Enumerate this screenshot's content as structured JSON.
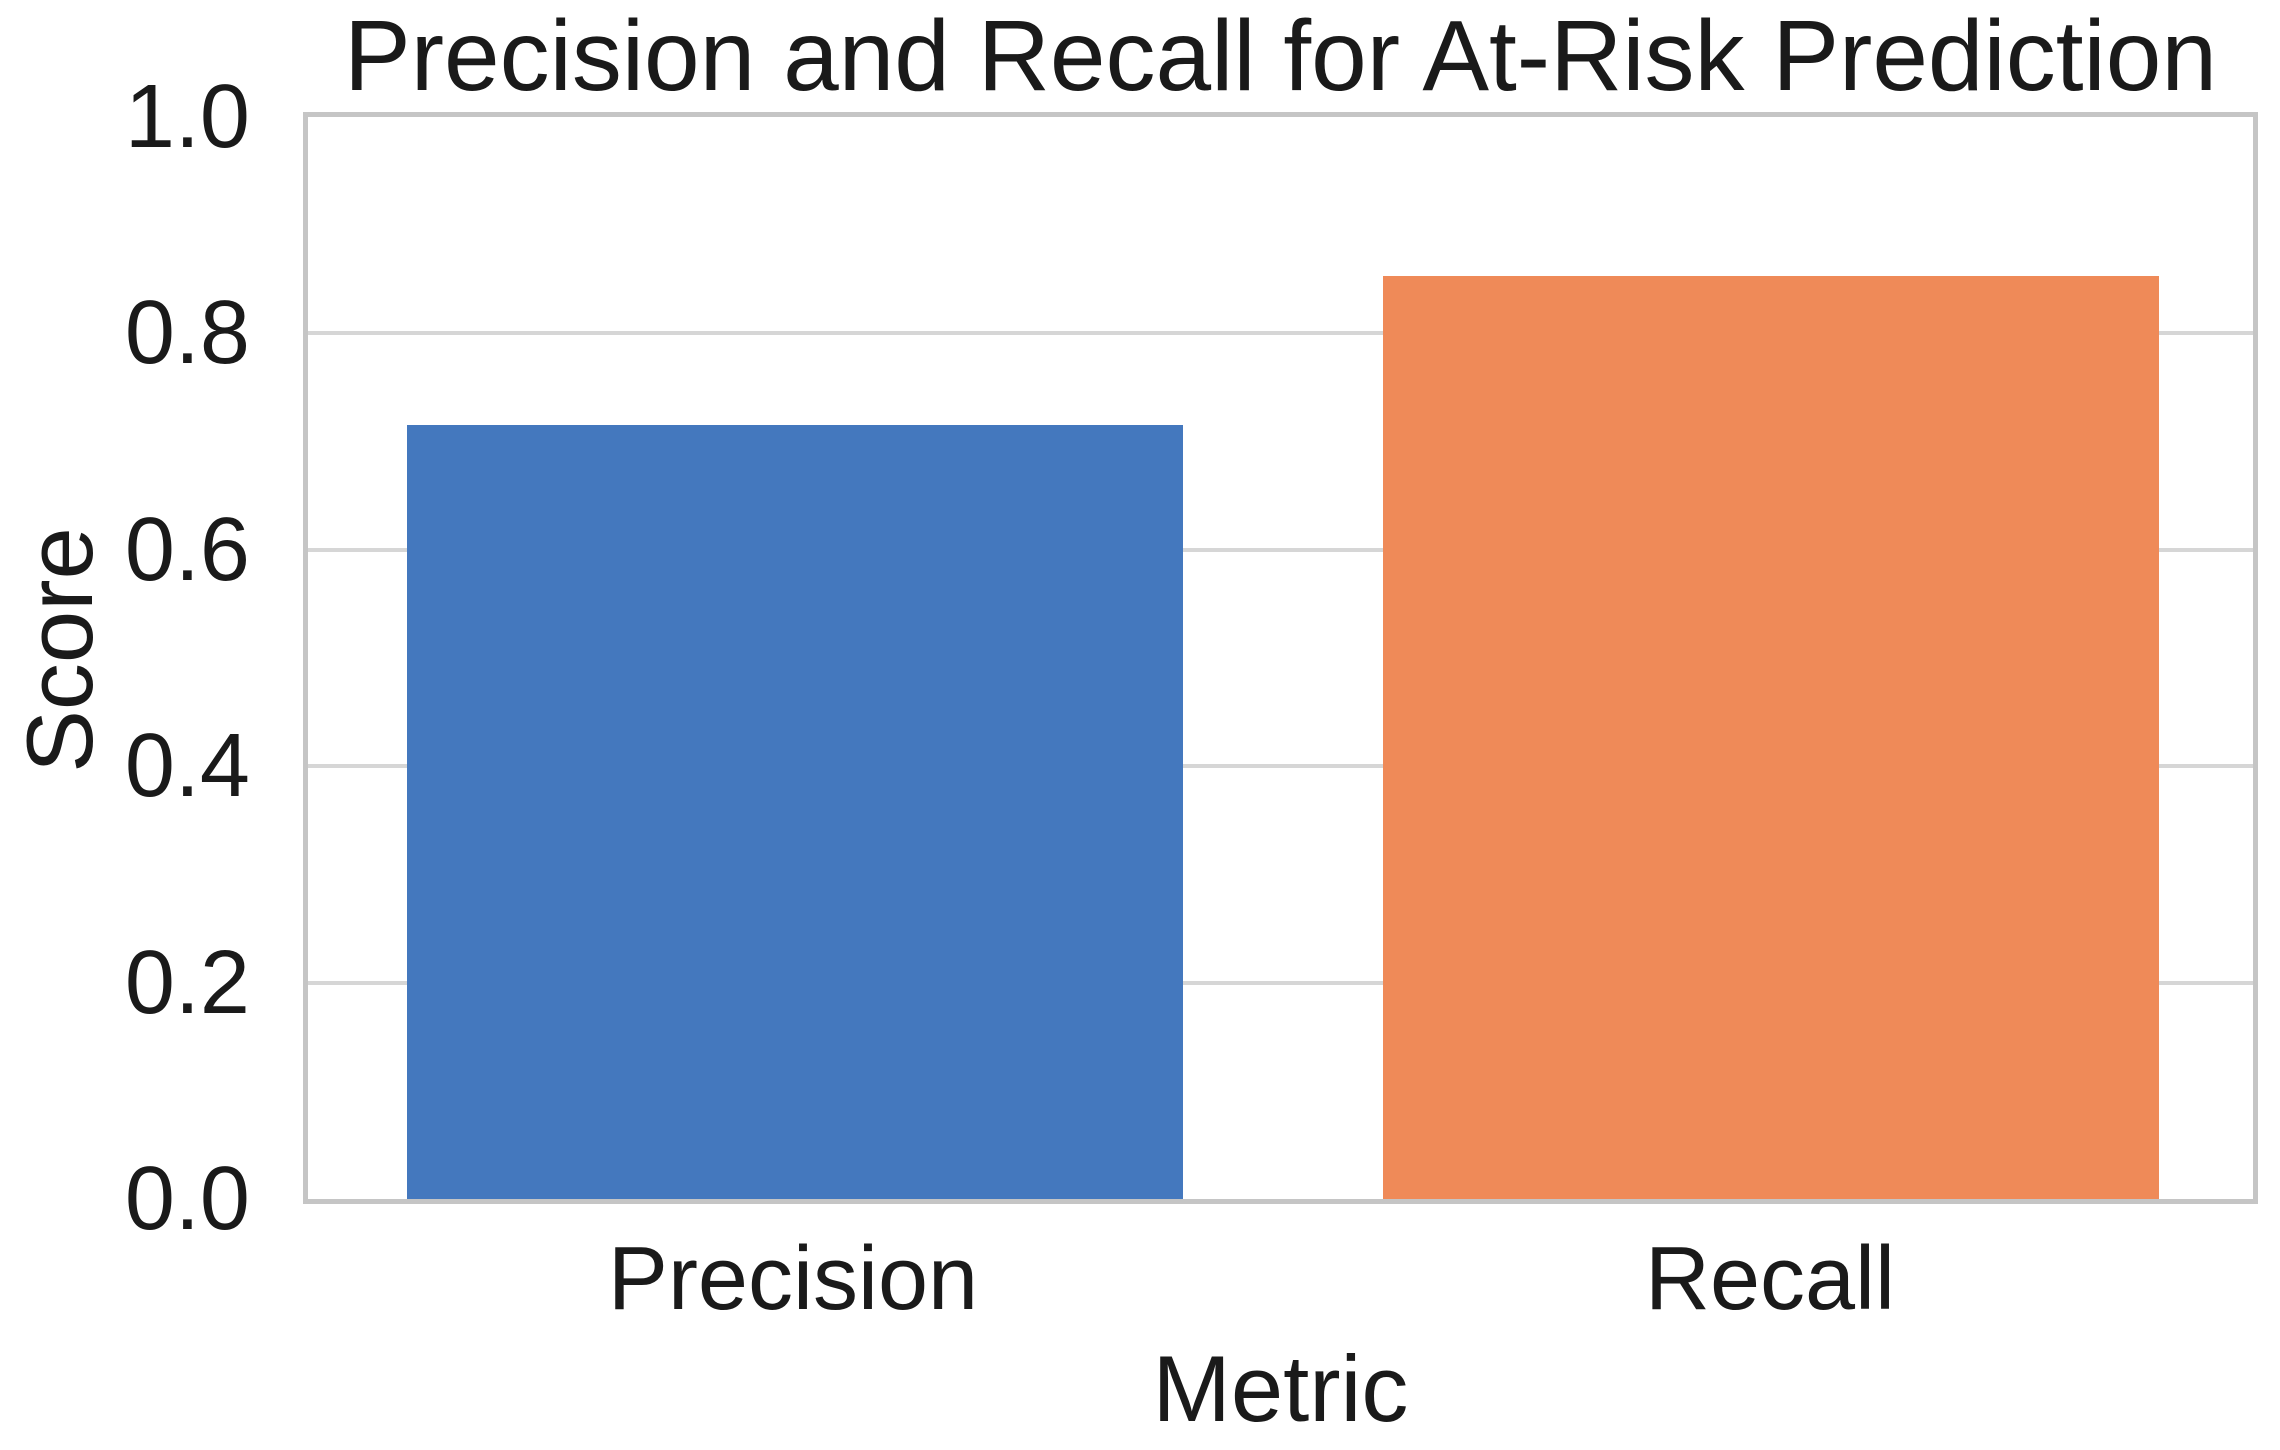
{
  "chart_data": {
    "type": "bar",
    "title": "Precision and Recall for At-Risk Prediction",
    "xlabel": "Metric",
    "ylabel": "Score",
    "categories": [
      "Precision",
      "Recall"
    ],
    "values": [
      0.715,
      0.853
    ],
    "bar_colors": [
      "#4478be",
      "#ef8a58"
    ],
    "ylim": [
      0.0,
      1.0
    ],
    "yticks": [
      1.0,
      0.8,
      0.6,
      0.4,
      0.2,
      0.0
    ],
    "ytick_labels": [
      "1.0",
      "0.8",
      "0.6",
      "0.4",
      "0.2",
      "0.0"
    ],
    "grid": "horizontal-on",
    "legend": "none",
    "background_color": "#ffffff",
    "grid_color": "#d6d6d6",
    "spine_color": "#c5c5c5",
    "text_color": "#1a1a1a"
  }
}
